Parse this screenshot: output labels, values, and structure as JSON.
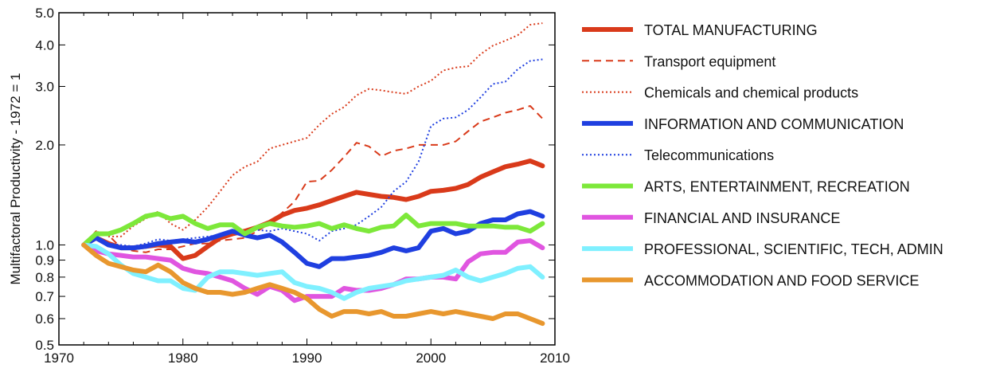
{
  "chart_data": {
    "type": "line",
    "ylabel": "Multifactoral Productivity - 1972 = 1",
    "xlim": [
      1970,
      2010
    ],
    "ylim": [
      0.5,
      5.0
    ],
    "yscale": "log",
    "xticks": [
      "1970",
      "1980",
      "1990",
      "2000",
      "2010"
    ],
    "yticks": [
      {
        "v": 0.5,
        "label": "0.5"
      },
      {
        "v": 0.6,
        "label": "0.6"
      },
      {
        "v": 0.7,
        "label": "0.7"
      },
      {
        "v": 0.8,
        "label": "0.8"
      },
      {
        "v": 0.9,
        "label": "0.9"
      },
      {
        "v": 1.0,
        "label": "1.0"
      },
      {
        "v": 2.0,
        "label": "2.0"
      },
      {
        "v": 3.0,
        "label": "3.0"
      },
      {
        "v": 4.0,
        "label": "4.0"
      },
      {
        "v": 5.0,
        "label": "5.0"
      }
    ],
    "grid": false,
    "legend_position": "right",
    "x": [
      1972,
      1973,
      1974,
      1975,
      1976,
      1977,
      1978,
      1979,
      1980,
      1981,
      1982,
      1983,
      1984,
      1985,
      1986,
      1987,
      1988,
      1989,
      1990,
      1991,
      1992,
      1993,
      1994,
      1995,
      1996,
      1997,
      1998,
      1999,
      2000,
      2001,
      2002,
      2003,
      2004,
      2005,
      2006,
      2007,
      2008,
      2009
    ],
    "series": [
      {
        "name": "TOTAL MANUFACTURING",
        "color": "#d93a1a",
        "style": "solid",
        "width": 6,
        "values": [
          1.0,
          1.05,
          1.01,
          0.98,
          0.98,
          0.99,
          1.0,
          0.99,
          0.91,
          0.93,
          0.99,
          1.05,
          1.08,
          1.1,
          1.13,
          1.17,
          1.23,
          1.27,
          1.29,
          1.32,
          1.36,
          1.4,
          1.44,
          1.42,
          1.4,
          1.39,
          1.37,
          1.4,
          1.45,
          1.46,
          1.48,
          1.52,
          1.6,
          1.66,
          1.72,
          1.75,
          1.79,
          1.73
        ]
      },
      {
        "name": "Transport equipment",
        "color": "#d93a1a",
        "style": "dashed",
        "width": 2,
        "values": [
          1.0,
          1.1,
          1.07,
          0.98,
          0.96,
          0.95,
          0.97,
          0.97,
          0.99,
          1.01,
          1.01,
          1.03,
          1.04,
          1.05,
          1.1,
          1.16,
          1.25,
          1.35,
          1.55,
          1.56,
          1.68,
          1.84,
          2.03,
          1.98,
          1.85,
          1.92,
          1.95,
          2.0,
          2.0,
          2.0,
          2.05,
          2.2,
          2.35,
          2.42,
          2.5,
          2.55,
          2.62,
          2.4
        ]
      },
      {
        "name": "Chemicals and chemical products",
        "color": "#d93a1a",
        "style": "dotted",
        "width": 2,
        "values": [
          1.0,
          1.1,
          1.06,
          1.06,
          1.14,
          1.2,
          1.26,
          1.16,
          1.11,
          1.19,
          1.3,
          1.45,
          1.62,
          1.72,
          1.78,
          1.95,
          2.0,
          2.05,
          2.1,
          2.3,
          2.48,
          2.6,
          2.82,
          2.95,
          2.92,
          2.88,
          2.85,
          3.0,
          3.12,
          3.35,
          3.42,
          3.45,
          3.75,
          3.98,
          4.12,
          4.28,
          4.6,
          4.65
        ]
      },
      {
        "name": "INFORMATION AND COMMUNICATION",
        "color": "#1f3fe0",
        "style": "solid",
        "width": 6,
        "values": [
          1.0,
          1.05,
          1.0,
          0.98,
          0.98,
          0.99,
          1.01,
          1.02,
          1.03,
          1.02,
          1.04,
          1.07,
          1.1,
          1.07,
          1.05,
          1.07,
          1.02,
          0.95,
          0.88,
          0.86,
          0.91,
          0.91,
          0.92,
          0.93,
          0.95,
          0.98,
          0.96,
          0.98,
          1.1,
          1.12,
          1.08,
          1.1,
          1.16,
          1.19,
          1.19,
          1.24,
          1.26,
          1.22
        ]
      },
      {
        "name": "Telecommunications",
        "color": "#1f3fe0",
        "style": "dotted",
        "width": 2,
        "values": [
          1.0,
          1.05,
          1.01,
          1.0,
          0.99,
          1.01,
          1.04,
          1.03,
          1.04,
          1.05,
          1.06,
          1.07,
          1.09,
          1.1,
          1.11,
          1.1,
          1.12,
          1.1,
          1.08,
          1.03,
          1.1,
          1.12,
          1.15,
          1.22,
          1.3,
          1.45,
          1.55,
          1.78,
          2.28,
          2.4,
          2.42,
          2.55,
          2.78,
          3.05,
          3.1,
          3.38,
          3.58,
          3.62
        ]
      },
      {
        "name": "ARTS, ENTERTAINMENT, RECREATION",
        "color": "#7de83a",
        "style": "solid",
        "width": 6,
        "values": [
          1.0,
          1.08,
          1.08,
          1.11,
          1.16,
          1.22,
          1.24,
          1.2,
          1.22,
          1.16,
          1.12,
          1.15,
          1.15,
          1.08,
          1.13,
          1.16,
          1.14,
          1.13,
          1.14,
          1.16,
          1.12,
          1.15,
          1.12,
          1.1,
          1.13,
          1.14,
          1.23,
          1.14,
          1.16,
          1.16,
          1.16,
          1.14,
          1.14,
          1.14,
          1.13,
          1.13,
          1.1,
          1.16
        ]
      },
      {
        "name": "FINANCIAL AND INSURANCE",
        "color": "#e055e0",
        "style": "solid",
        "width": 6,
        "values": [
          1.0,
          0.96,
          0.94,
          0.93,
          0.92,
          0.92,
          0.91,
          0.9,
          0.85,
          0.83,
          0.82,
          0.8,
          0.78,
          0.74,
          0.71,
          0.75,
          0.73,
          0.68,
          0.7,
          0.7,
          0.7,
          0.74,
          0.73,
          0.73,
          0.74,
          0.76,
          0.79,
          0.79,
          0.8,
          0.8,
          0.79,
          0.89,
          0.94,
          0.95,
          0.95,
          1.02,
          1.03,
          0.98
        ]
      },
      {
        "name": "PROFESSIONAL, SCIENTIFIC, TECH, ADMIN",
        "color": "#7ff0ff",
        "style": "solid",
        "width": 6,
        "values": [
          1.0,
          0.99,
          0.94,
          0.87,
          0.82,
          0.8,
          0.78,
          0.78,
          0.74,
          0.73,
          0.8,
          0.83,
          0.83,
          0.82,
          0.81,
          0.82,
          0.83,
          0.77,
          0.75,
          0.74,
          0.72,
          0.69,
          0.72,
          0.74,
          0.75,
          0.76,
          0.78,
          0.79,
          0.8,
          0.81,
          0.84,
          0.8,
          0.78,
          0.8,
          0.82,
          0.85,
          0.86,
          0.8
        ]
      },
      {
        "name": "ACCOMMODATION AND FOOD SERVICE",
        "color": "#e8972e",
        "style": "solid",
        "width": 6,
        "values": [
          1.0,
          0.93,
          0.88,
          0.86,
          0.84,
          0.83,
          0.87,
          0.83,
          0.77,
          0.74,
          0.72,
          0.72,
          0.71,
          0.72,
          0.74,
          0.76,
          0.74,
          0.72,
          0.69,
          0.64,
          0.61,
          0.63,
          0.63,
          0.62,
          0.63,
          0.61,
          0.61,
          0.62,
          0.63,
          0.62,
          0.63,
          0.62,
          0.61,
          0.6,
          0.62,
          0.62,
          0.6,
          0.58
        ]
      }
    ]
  }
}
